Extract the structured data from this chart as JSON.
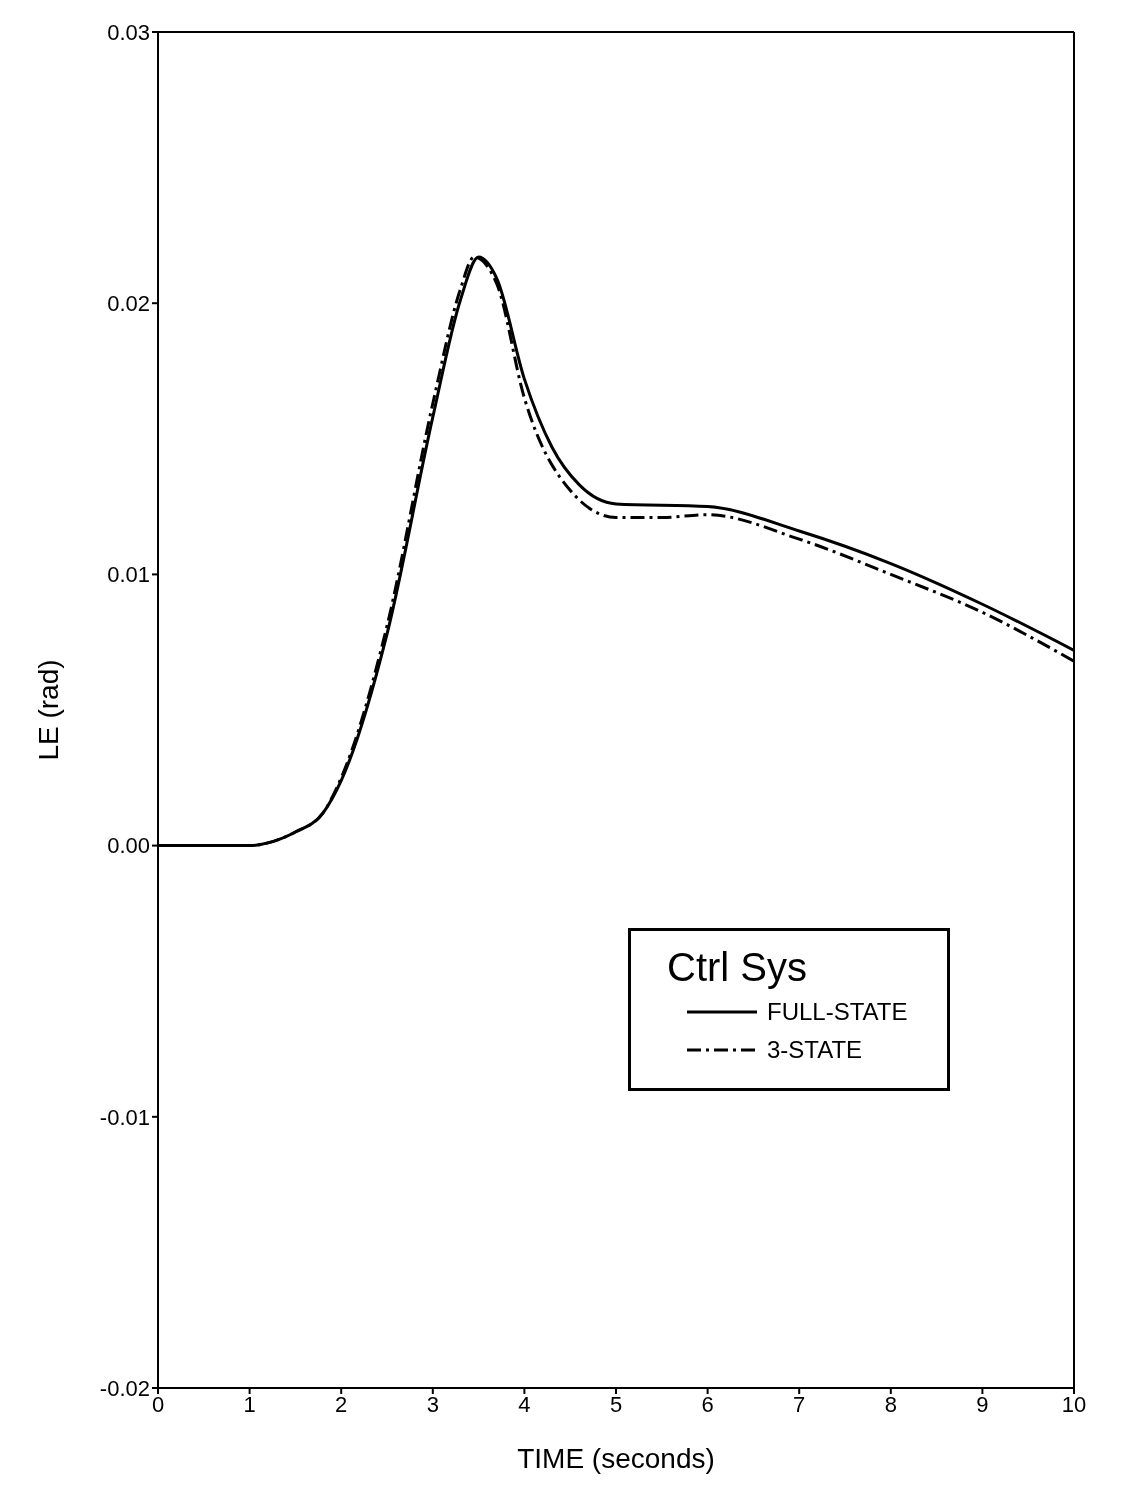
{
  "chart_data": {
    "type": "line",
    "xlabel": "TIME (seconds)",
    "ylabel": "LE (rad)",
    "legend_title": "Ctrl Sys",
    "legend": "bottom right",
    "grid": false,
    "marker": "none",
    "xlim": [
      0,
      10
    ],
    "xticks": [
      0,
      1,
      2,
      3,
      4,
      5,
      6,
      7,
      8,
      9,
      10
    ],
    "ylim": [
      -0.02,
      0.03
    ],
    "yticks": [
      {
        "value": -0.02,
        "label": "-0.02"
      },
      {
        "value": -0.01,
        "label": "-0.01"
      },
      {
        "value": 0,
        "label": "0.00"
      },
      {
        "value": 0.01,
        "label": "0.01"
      },
      {
        "value": 0.02,
        "label": "0.02"
      },
      {
        "value": 0.03,
        "label": "0.03"
      }
    ],
    "series": [
      {
        "name": "FULL-STATE",
        "color": "#000000",
        "line_style": "solid",
        "x": [
          0,
          1,
          1.2,
          1.5,
          1.8,
          2,
          2.5,
          3,
          3.3,
          3.5,
          3.7,
          4,
          4.3,
          4.6,
          5,
          6,
          7,
          8,
          9,
          10
        ],
        "values": [
          0,
          0,
          0.0001,
          0.0005,
          0.0012,
          0.0024,
          0.0078,
          0.0158,
          0.0201,
          0.0217,
          0.0209,
          0.0172,
          0.0147,
          0.0133,
          0.0126,
          0.0125,
          0.0116,
          0.0104,
          0.0089,
          0.0072
        ]
      },
      {
        "name": "3-STATE",
        "color": "#000000",
        "line_style": "dashed",
        "x": [
          0,
          1,
          1.2,
          1.5,
          1.8,
          2,
          2.5,
          3,
          3.3,
          3.45,
          3.7,
          4,
          4.5,
          5,
          5.5,
          6,
          7,
          8,
          9,
          10
        ],
        "values": [
          0,
          0,
          0.0001,
          0.0005,
          0.0012,
          0.0025,
          0.0081,
          0.0163,
          0.0205,
          0.0217,
          0.0207,
          0.0165,
          0.0131,
          0.0121,
          0.0121,
          0.0122,
          0.0113,
          0.01,
          0.0086,
          0.0068
        ]
      }
    ]
  }
}
